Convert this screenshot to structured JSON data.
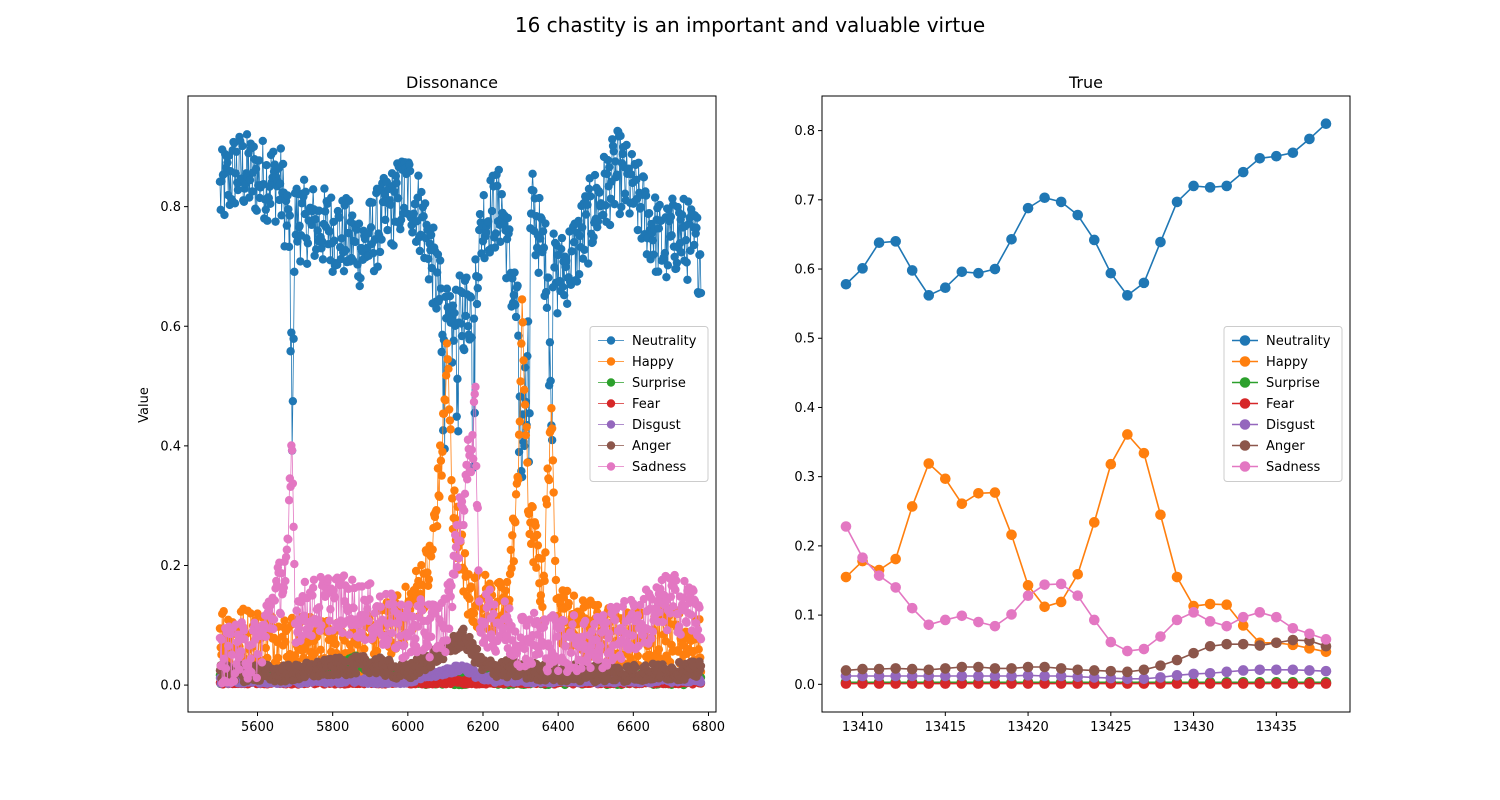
{
  "figure": {
    "suptitle": "16 chastity is an important and valuable virtue"
  },
  "colors": {
    "Neutrality": "#1f77b4",
    "Happy": "#ff7f0e",
    "Surprise": "#2ca02c",
    "Fear": "#d62728",
    "Disgust": "#9467bd",
    "Anger": "#8c564b",
    "Sadness": "#e377c2"
  },
  "chart_data": [
    {
      "type": "line",
      "title": "Dissonance",
      "xlabel": "",
      "ylabel": "Value",
      "xlim": [
        5415,
        6820
      ],
      "ylim": [
        -0.045,
        0.985
      ],
      "xticks": [
        5600,
        5800,
        6000,
        6200,
        6400,
        6600,
        6800
      ],
      "yticks": [
        0.0,
        0.2,
        0.4,
        0.6,
        0.8
      ],
      "yticklabels": [
        "0.0",
        "0.2",
        "0.4",
        "0.6",
        "0.8"
      ],
      "legend": "center-right",
      "x_range": [
        5500,
        6780
      ],
      "x_step": 2,
      "series": [
        {
          "name": "Neutrality",
          "keyframes": [
            [
              5500,
              0.82
            ],
            [
              5540,
              0.86
            ],
            [
              5600,
              0.85
            ],
            [
              5660,
              0.84
            ],
            [
              5685,
              0.76
            ],
            [
              5692,
              0.45
            ],
            [
              5700,
              0.78
            ],
            [
              5800,
              0.76
            ],
            [
              5880,
              0.73
            ],
            [
              5960,
              0.8
            ],
            [
              6000,
              0.83
            ],
            [
              6040,
              0.78
            ],
            [
              6080,
              0.66
            ],
            [
              6110,
              0.58
            ],
            [
              6140,
              0.62
            ],
            [
              6170,
              0.64
            ],
            [
              6200,
              0.78
            ],
            [
              6250,
              0.8
            ],
            [
              6290,
              0.62
            ],
            [
              6310,
              0.45
            ],
            [
              6330,
              0.8
            ],
            [
              6370,
              0.7
            ],
            [
              6400,
              0.68
            ],
            [
              6450,
              0.73
            ],
            [
              6500,
              0.8
            ],
            [
              6560,
              0.86
            ],
            [
              6620,
              0.8
            ],
            [
              6680,
              0.73
            ],
            [
              6720,
              0.76
            ],
            [
              6780,
              0.72
            ]
          ],
          "noise": 0.07,
          "dips": [
            [
              5690,
              0.52
            ],
            [
              6095,
              0.45
            ],
            [
              6135,
              0.42
            ],
            [
              6175,
              0.38
            ],
            [
              6300,
              0.28
            ],
            [
              6320,
              0.35
            ],
            [
              6380,
              0.45
            ]
          ]
        },
        {
          "name": "Happy",
          "keyframes": [
            [
              5500,
              0.09
            ],
            [
              5600,
              0.08
            ],
            [
              5700,
              0.07
            ],
            [
              5800,
              0.06
            ],
            [
              5900,
              0.07
            ],
            [
              6000,
              0.12
            ],
            [
              6060,
              0.2
            ],
            [
              6090,
              0.38
            ],
            [
              6105,
              0.55
            ],
            [
              6120,
              0.3
            ],
            [
              6160,
              0.15
            ],
            [
              6200,
              0.14
            ],
            [
              6260,
              0.12
            ],
            [
              6290,
              0.3
            ],
            [
              6305,
              0.62
            ],
            [
              6320,
              0.3
            ],
            [
              6360,
              0.15
            ],
            [
              6380,
              0.45
            ],
            [
              6400,
              0.12
            ],
            [
              6500,
              0.09
            ],
            [
              6600,
              0.08
            ],
            [
              6700,
              0.08
            ],
            [
              6780,
              0.06
            ]
          ],
          "noise": 0.05,
          "dips": []
        },
        {
          "name": "Surprise",
          "keyframes": [
            [
              5500,
              0.01
            ],
            [
              5580,
              0.02
            ],
            [
              5700,
              0.01
            ],
            [
              5860,
              0.04
            ],
            [
              5900,
              0.03
            ],
            [
              6000,
              0.01
            ],
            [
              6200,
              0.01
            ],
            [
              6500,
              0.01
            ],
            [
              6780,
              0.01
            ]
          ],
          "noise": 0.01,
          "dips": []
        },
        {
          "name": "Fear",
          "keyframes": [
            [
              5500,
              0.005
            ],
            [
              6000,
              0.005
            ],
            [
              6500,
              0.005
            ],
            [
              6780,
              0.005
            ]
          ],
          "noise": 0.004,
          "dips": []
        },
        {
          "name": "Disgust",
          "keyframes": [
            [
              5500,
              0.008
            ],
            [
              6000,
              0.008
            ],
            [
              6150,
              0.03
            ],
            [
              6200,
              0.01
            ],
            [
              6500,
              0.008
            ],
            [
              6780,
              0.01
            ]
          ],
          "noise": 0.006,
          "dips": []
        },
        {
          "name": "Anger",
          "keyframes": [
            [
              5500,
              0.02
            ],
            [
              5700,
              0.02
            ],
            [
              5800,
              0.03
            ],
            [
              5900,
              0.035
            ],
            [
              6000,
              0.02
            ],
            [
              6150,
              0.08
            ],
            [
              6200,
              0.03
            ],
            [
              6400,
              0.02
            ],
            [
              6600,
              0.02
            ],
            [
              6780,
              0.025
            ]
          ],
          "noise": 0.015,
          "dips": []
        },
        {
          "name": "Sadness",
          "keyframes": [
            [
              5500,
              0.05
            ],
            [
              5600,
              0.06
            ],
            [
              5680,
              0.2
            ],
            [
              5692,
              0.4
            ],
            [
              5700,
              0.12
            ],
            [
              5800,
              0.14
            ],
            [
              5900,
              0.12
            ],
            [
              6000,
              0.09
            ],
            [
              6100,
              0.1
            ],
            [
              6180,
              0.45
            ],
            [
              6190,
              0.12
            ],
            [
              6300,
              0.08
            ],
            [
              6400,
              0.07
            ],
            [
              6500,
              0.07
            ],
            [
              6600,
              0.1
            ],
            [
              6700,
              0.14
            ],
            [
              6780,
              0.12
            ]
          ],
          "noise": 0.05,
          "dips": []
        }
      ]
    },
    {
      "type": "line",
      "title": "True",
      "xlabel": "",
      "ylabel": "",
      "xlim": [
        13407.55,
        13439.45
      ],
      "ylim": [
        -0.04,
        0.85
      ],
      "xticks": [
        13410,
        13415,
        13420,
        13425,
        13430,
        13435
      ],
      "yticks": [
        0.0,
        0.1,
        0.2,
        0.3,
        0.4,
        0.5,
        0.6,
        0.7,
        0.8
      ],
      "yticklabels": [
        "0.0",
        "0.1",
        "0.2",
        "0.3",
        "0.4",
        "0.5",
        "0.6",
        "0.7",
        "0.8"
      ],
      "legend": "center-right",
      "x": [
        13409,
        13410,
        13411,
        13412,
        13413,
        13414,
        13415,
        13416,
        13417,
        13418,
        13419,
        13420,
        13421,
        13422,
        13423,
        13424,
        13425,
        13426,
        13427,
        13428,
        13429,
        13430,
        13431,
        13432,
        13433,
        13434,
        13435,
        13436,
        13437,
        13438
      ],
      "series": [
        {
          "name": "Neutrality",
          "values": [
            0.578,
            0.601,
            0.638,
            0.64,
            0.598,
            0.562,
            0.573,
            0.596,
            0.594,
            0.6,
            0.643,
            0.688,
            0.703,
            0.697,
            0.678,
            0.642,
            0.594,
            0.562,
            0.58,
            0.639,
            0.697,
            0.72,
            0.718,
            0.72,
            0.74,
            0.76,
            0.763,
            0.768,
            0.788,
            0.81
          ]
        },
        {
          "name": "Happy",
          "values": [
            0.155,
            0.178,
            0.165,
            0.181,
            0.257,
            0.319,
            0.297,
            0.261,
            0.276,
            0.277,
            0.216,
            0.143,
            0.112,
            0.119,
            0.159,
            0.234,
            0.318,
            0.361,
            0.334,
            0.245,
            0.155,
            0.113,
            0.116,
            0.115,
            0.085,
            0.06,
            0.06,
            0.057,
            0.052,
            0.047
          ]
        },
        {
          "name": "Surprise",
          "values": [
            0.003,
            0.003,
            0.003,
            0.003,
            0.003,
            0.003,
            0.003,
            0.003,
            0.003,
            0.003,
            0.003,
            0.003,
            0.003,
            0.003,
            0.003,
            0.003,
            0.003,
            0.003,
            0.003,
            0.003,
            0.003,
            0.003,
            0.003,
            0.003,
            0.003,
            0.003,
            0.003,
            0.003,
            0.003,
            0.003
          ]
        },
        {
          "name": "Fear",
          "values": [
            0.001,
            0.001,
            0.001,
            0.001,
            0.001,
            0.001,
            0.001,
            0.001,
            0.001,
            0.001,
            0.001,
            0.001,
            0.001,
            0.001,
            0.001,
            0.001,
            0.001,
            0.001,
            0.001,
            0.001,
            0.001,
            0.001,
            0.001,
            0.001,
            0.001,
            0.001,
            0.001,
            0.001,
            0.001,
            0.001
          ]
        },
        {
          "name": "Disgust",
          "values": [
            0.012,
            0.012,
            0.012,
            0.012,
            0.012,
            0.012,
            0.012,
            0.012,
            0.012,
            0.012,
            0.012,
            0.013,
            0.012,
            0.012,
            0.011,
            0.01,
            0.009,
            0.008,
            0.008,
            0.01,
            0.013,
            0.015,
            0.016,
            0.018,
            0.02,
            0.021,
            0.021,
            0.021,
            0.02,
            0.019
          ]
        },
        {
          "name": "Anger",
          "values": [
            0.02,
            0.022,
            0.022,
            0.023,
            0.022,
            0.021,
            0.023,
            0.025,
            0.025,
            0.023,
            0.023,
            0.025,
            0.025,
            0.023,
            0.021,
            0.02,
            0.019,
            0.018,
            0.021,
            0.027,
            0.035,
            0.045,
            0.055,
            0.058,
            0.058,
            0.056,
            0.06,
            0.064,
            0.063,
            0.055
          ]
        },
        {
          "name": "Sadness",
          "values": [
            0.228,
            0.183,
            0.157,
            0.14,
            0.11,
            0.086,
            0.093,
            0.099,
            0.09,
            0.084,
            0.101,
            0.128,
            0.144,
            0.145,
            0.128,
            0.093,
            0.061,
            0.048,
            0.051,
            0.069,
            0.093,
            0.104,
            0.091,
            0.084,
            0.097,
            0.104,
            0.097,
            0.081,
            0.073,
            0.065
          ]
        }
      ]
    }
  ]
}
